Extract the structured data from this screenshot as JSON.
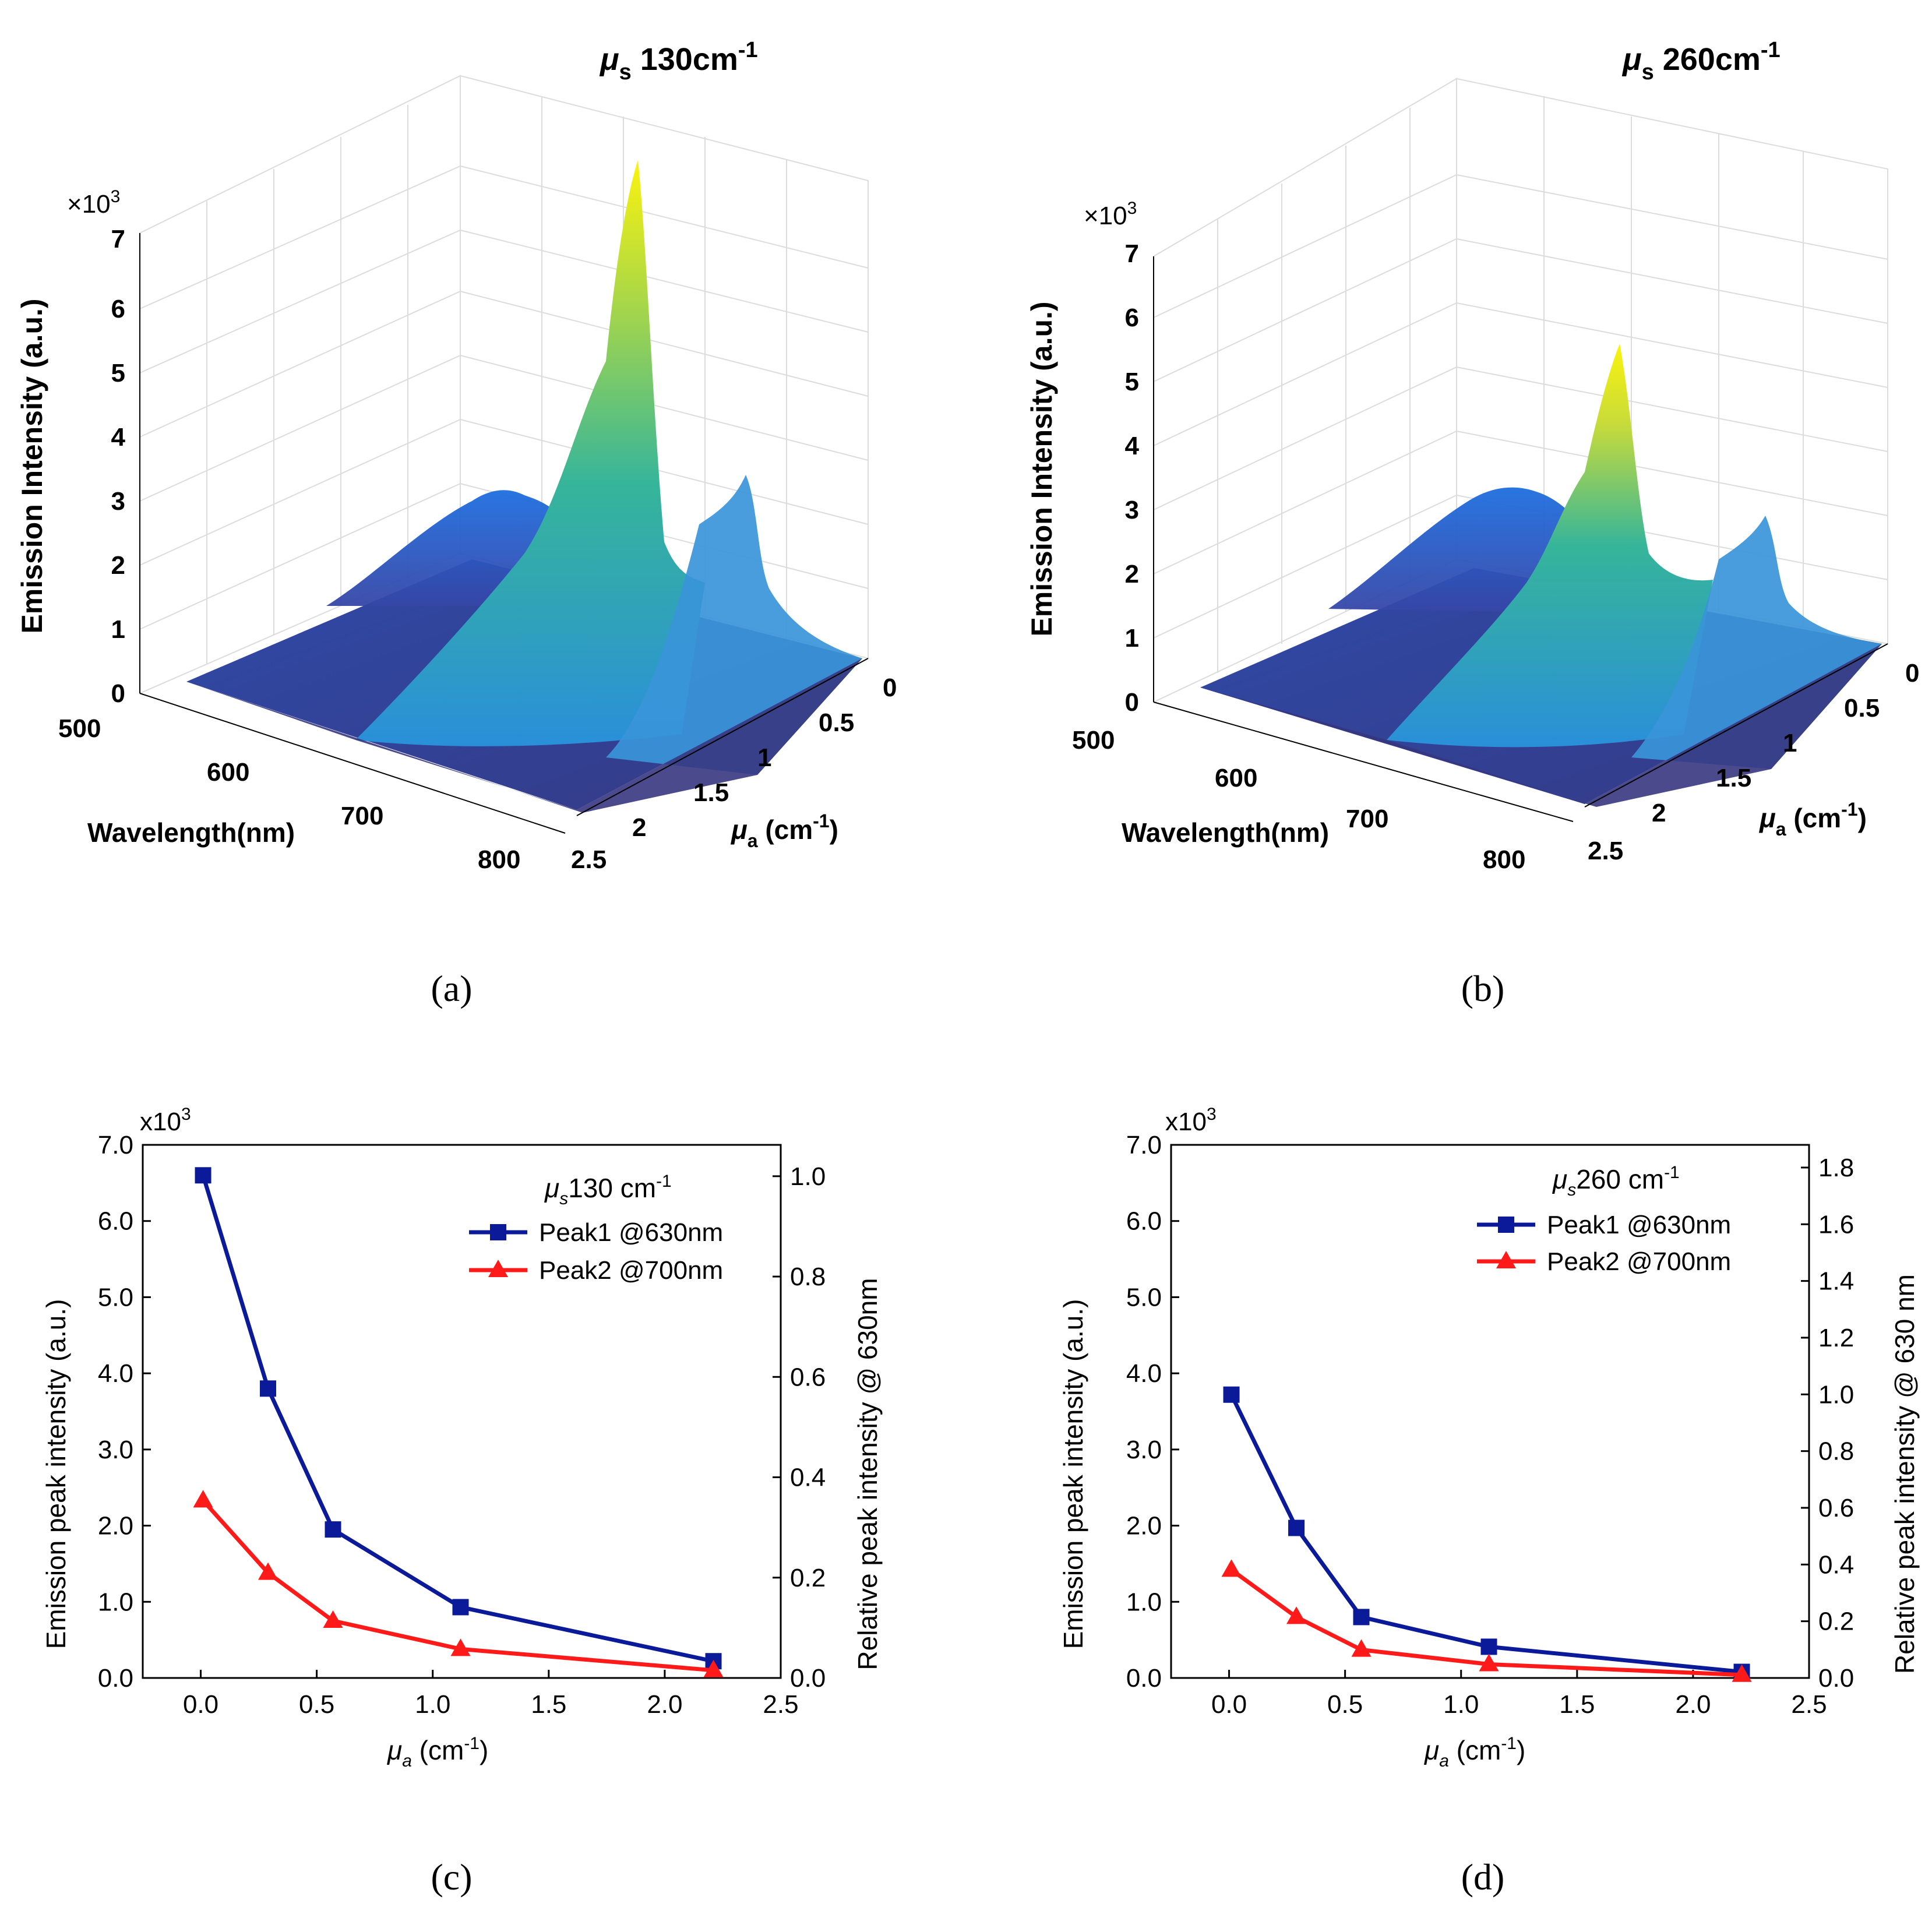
{
  "colors": {
    "peak1": "#0b1a99",
    "peak2": "#ff1a1a",
    "surface_low": "#3b3a8f",
    "surface_mid": "#1f6fd6",
    "surface_high": "#2bb39a",
    "surface_peak": "#f9f20f"
  },
  "captions": {
    "a": "(a)",
    "b": "(b)",
    "c": "(c)",
    "d": "(d)"
  },
  "panel_a": {
    "title_mu": "μ",
    "title_sub": "s",
    "title_val": " 130cm",
    "title_exp": "-1",
    "z_label": "Emission Intensity (a.u.)",
    "z_multiplier": "×10",
    "z_multiplier_exp": "3",
    "z_ticks": [
      "0",
      "1",
      "2",
      "3",
      "4",
      "5",
      "6",
      "7"
    ],
    "x_label": "Wavelength(nm)",
    "x_ticks": [
      "500",
      "600",
      "700",
      "800"
    ],
    "y_label_mu": "μ",
    "y_label_sub": "a",
    "y_label_unit": " (cm",
    "y_label_exp": "-1",
    "y_label_close": ")",
    "y_ticks": [
      "0",
      "0.5",
      "1",
      "1.5",
      "2",
      "2.5"
    ]
  },
  "panel_b": {
    "title_mu": "μ",
    "title_sub": "s",
    "title_val": " 260cm",
    "title_exp": "-1",
    "z_label": "Emission Intensity (a.u.)",
    "z_multiplier": "×10",
    "z_multiplier_exp": "3",
    "z_ticks": [
      "0",
      "1",
      "2",
      "3",
      "4",
      "5",
      "6",
      "7"
    ],
    "x_label": "Wavelength(nm)",
    "x_ticks": [
      "500",
      "600",
      "700",
      "800"
    ],
    "y_label_mu": "μ",
    "y_label_sub": "a",
    "y_label_unit": " (cm",
    "y_label_exp": "-1",
    "y_label_close": ")",
    "y_ticks": [
      "0",
      "0.5",
      "1",
      "1.5",
      "2",
      "2.5"
    ]
  },
  "chart_data": [
    {
      "type": "surface3d",
      "title": "μs 130cm-1",
      "xlabel": "Wavelength(nm)",
      "xlim": [
        500,
        800
      ],
      "ylabel": "μa (cm-1)",
      "ylim": [
        0,
        2.5
      ],
      "zlabel": "Emission Intensity (a.u.)",
      "zlim": [
        0,
        7
      ],
      "z_multiplier": "x10^3",
      "peaks_at_mu0": {
        "630nm": 6.6,
        "700nm": 2.3,
        "broad_~600nm": 2.5
      }
    },
    {
      "type": "surface3d",
      "title": "μs 260cm-1",
      "xlabel": "Wavelength(nm)",
      "xlim": [
        500,
        800
      ],
      "ylabel": "μa (cm-1)",
      "ylim": [
        0,
        2.5
      ],
      "zlabel": "Emission Intensity (a.u.)",
      "zlim": [
        0,
        7
      ],
      "z_multiplier": "x10^3",
      "peaks_at_mu0": {
        "630nm": 3.7,
        "700nm": 1.4,
        "broad_~600nm": 2.5
      }
    },
    {
      "type": "line",
      "legend_title_mu": "μ",
      "legend_title_sub": "s",
      "legend_title": "130 cm-1",
      "legend_title_text": "130 cm",
      "x": [
        0.01,
        0.29,
        0.57,
        1.12,
        2.21
      ],
      "series": [
        {
          "name": "Peak1 @630nm",
          "marker": "square",
          "values": [
            6.6,
            3.8,
            1.95,
            0.93,
            0.22
          ]
        },
        {
          "name": "Peak2 @700nm",
          "marker": "triangle",
          "values": [
            2.33,
            1.38,
            0.75,
            0.38,
            0.1
          ]
        }
      ],
      "xlabel_mu": "μ",
      "xlabel_sub": "a",
      "xlabel_unit": " (cm",
      "xlabel_exp": "-1",
      "xlabel_close": ")",
      "ylabel": "Emission peak intensity (a.u.)",
      "y2label": "Relative peak intensity @ 630nm",
      "y_multiplier": "x10",
      "y_multiplier_exp": "3",
      "xlim": [
        -0.25,
        2.5
      ],
      "ylim": [
        0,
        7
      ],
      "y2lim": [
        0,
        1.0625
      ],
      "x_ticks": [
        "0.0",
        "0.5",
        "1.0",
        "1.5",
        "2.0",
        "2.5"
      ],
      "x_tick_values": [
        0,
        0.5,
        1.0,
        1.5,
        2.0,
        2.5
      ],
      "y_ticks": [
        "0.0",
        "1.0",
        "2.0",
        "3.0",
        "4.0",
        "5.0",
        "6.0",
        "7.0"
      ],
      "y_tick_values": [
        0,
        1,
        2,
        3,
        4,
        5,
        6,
        7
      ],
      "y2_ticks": [
        "0.0",
        "0.2",
        "0.4",
        "0.6",
        "0.8",
        "1.0"
      ],
      "y2_tick_values": [
        0,
        0.2,
        0.4,
        0.6,
        0.8,
        1.0
      ]
    },
    {
      "type": "line",
      "legend_title_mu": "μ",
      "legend_title_sub": "s",
      "legend_title": "260 cm-1",
      "legend_title_text": "260 cm",
      "x": [
        0.01,
        0.29,
        0.57,
        1.12,
        2.21
      ],
      "series": [
        {
          "name": "Peak1 @630nm",
          "marker": "square",
          "values": [
            3.72,
            1.97,
            0.8,
            0.41,
            0.08
          ]
        },
        {
          "name": "Peak2 @700nm",
          "marker": "triangle",
          "values": [
            1.42,
            0.8,
            0.37,
            0.18,
            0.04
          ]
        }
      ],
      "xlabel_mu": "μ",
      "xlabel_sub": "a",
      "xlabel_unit": " (cm",
      "xlabel_exp": "-1",
      "xlabel_close": ")",
      "ylabel": "Emission peak intensity (a.u.)",
      "y2label": "Relative peak intensity @ 630 nm",
      "y_multiplier": "x10",
      "y_multiplier_exp": "3",
      "xlim": [
        -0.25,
        2.5
      ],
      "ylim": [
        0,
        7
      ],
      "y2lim": [
        0,
        1.88
      ],
      "x_ticks": [
        "0.0",
        "0.5",
        "1.0",
        "1.5",
        "2.0",
        "2.5"
      ],
      "x_tick_values": [
        0,
        0.5,
        1.0,
        1.5,
        2.0,
        2.5
      ],
      "y_ticks": [
        "0.0",
        "1.0",
        "2.0",
        "3.0",
        "4.0",
        "5.0",
        "6.0",
        "7.0"
      ],
      "y_tick_values": [
        0,
        1,
        2,
        3,
        4,
        5,
        6,
        7
      ],
      "y2_ticks": [
        "0.0",
        "0.2",
        "0.4",
        "0.6",
        "0.8",
        "1.0",
        "1.2",
        "1.4",
        "1.6",
        "1.8"
      ],
      "y2_tick_values": [
        0,
        0.2,
        0.4,
        0.6,
        0.8,
        1.0,
        1.2,
        1.4,
        1.6,
        1.8
      ]
    }
  ]
}
